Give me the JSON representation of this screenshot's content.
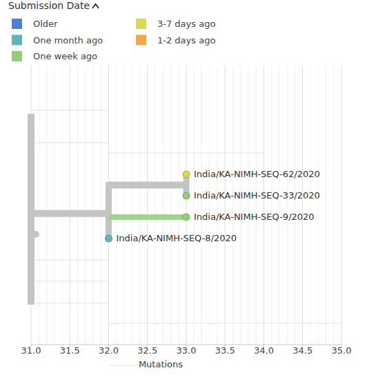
{
  "chart_data": {
    "type": "tree",
    "legend_title": "Submission Date",
    "legend": "top-left",
    "groups": [
      {
        "name": "Older",
        "color": "#4b80d8"
      },
      {
        "name": "One month ago",
        "color": "#5cb6c0"
      },
      {
        "name": "One week ago",
        "color": "#8fcf78"
      },
      {
        "name": "3-7 days ago",
        "color": "#d9d94c"
      },
      {
        "name": "1-2 days ago",
        "color": "#f6a83c"
      }
    ],
    "x_label": "Mutations",
    "xlim": [
      31,
      35
    ],
    "xticks": [
      {
        "value": 31,
        "label": "31.0"
      },
      31.5,
      {
        "value": 32,
        "label": "32.0"
      },
      32.5,
      {
        "value": 33,
        "label": "33.0"
      },
      33.5,
      {
        "value": 34,
        "label": "34.0"
      },
      34.5,
      {
        "value": 35,
        "label": "35.0"
      }
    ],
    "grid": true,
    "tree": {
      "mutations": 31,
      "children": [
        {
          "mutations": 32,
          "children": [
            {
              "mutations": 33,
              "children": [
                {
                  "name": "India/KA-NIMH-SEQ-62/2020",
                  "mutations": 33,
                  "group": "3-7 days ago"
                },
                {
                  "name": "India/KA-NIMH-SEQ-33/2020",
                  "mutations": 33,
                  "group": "One week ago"
                }
              ]
            },
            {
              "name": "India/KA-NIMH-SEQ-9/2020",
              "mutations": 33,
              "group": "One week ago"
            },
            {
              "name": "India/KA-NIMH-SEQ-8/2020",
              "mutations": 32,
              "group": "One month ago"
            }
          ]
        }
      ]
    }
  }
}
